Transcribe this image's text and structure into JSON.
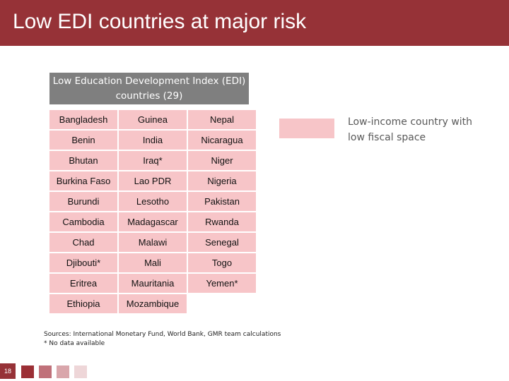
{
  "header": {
    "title": "Low EDI countries at major risk"
  },
  "table": {
    "title": "Low Education Development Index (EDI) countries (29)",
    "rows": [
      [
        "Bangladesh",
        "Guinea",
        "Nepal"
      ],
      [
        "Benin",
        "India",
        "Nicaragua"
      ],
      [
        "Bhutan",
        "Iraq*",
        "Niger"
      ],
      [
        "Burkina Faso",
        "Lao PDR",
        "Nigeria"
      ],
      [
        "Burundi",
        "Lesotho",
        "Pakistan"
      ],
      [
        "Cambodia",
        "Madagascar",
        "Rwanda"
      ],
      [
        "Chad",
        "Malawi",
        "Senegal"
      ],
      [
        "Djibouti*",
        "Mali",
        "Togo"
      ],
      [
        "Eritrea",
        "Mauritania",
        "Yemen*"
      ],
      [
        "Ethiopia",
        "Mozambique"
      ]
    ]
  },
  "legend": {
    "label": "Low-income country with low fiscal space",
    "color": "#f7c5c8"
  },
  "footer": {
    "sources": "Sources: International Monetary Fund, World Bank, GMR team calculations",
    "note": "* No data available",
    "page": "18"
  }
}
